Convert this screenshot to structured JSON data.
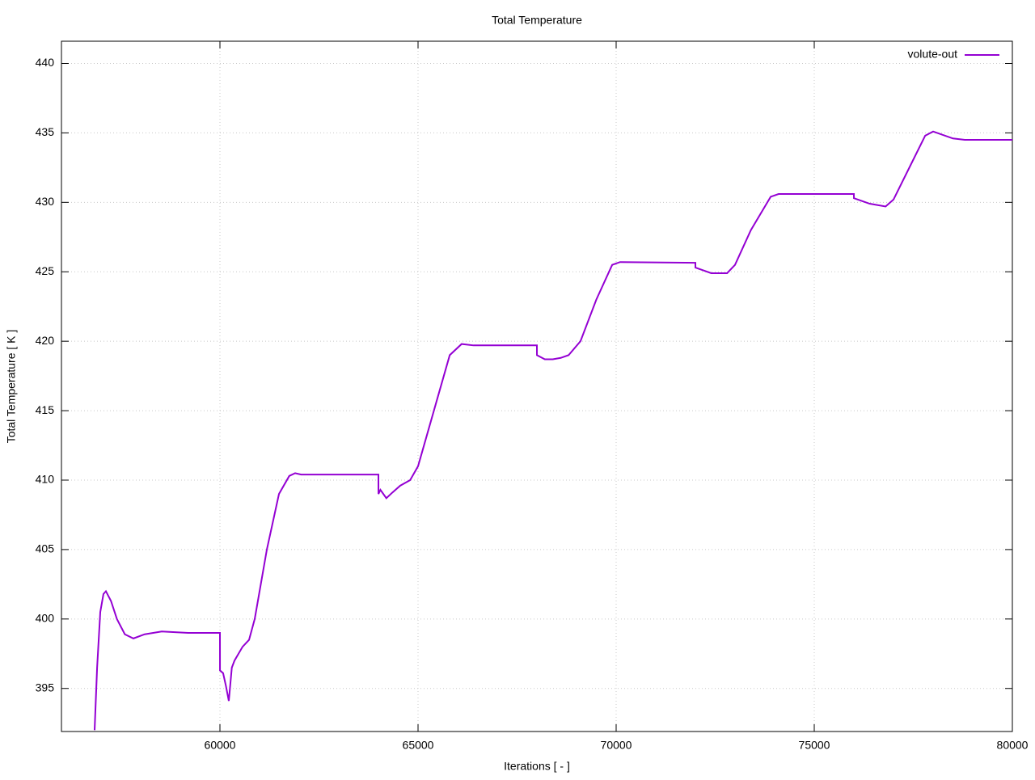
{
  "chart_data": {
    "type": "line",
    "title": "Total Temperature",
    "x_label": "Iterations [ - ]",
    "y_label": "Total Temperature [ K ]",
    "x": [
      56837,
      56900,
      56980,
      57060,
      57122,
      57250,
      57400,
      57600,
      57816,
      58100,
      58531,
      59200,
      60000,
      60001,
      60080,
      60150,
      60224,
      60300,
      60367,
      60571,
      60735,
      60878,
      61184,
      61490,
      61750,
      61898,
      62050,
      62300,
      64000,
      64001,
      64050,
      64200,
      64350,
      64550,
      64800,
      65000,
      65400,
      65800,
      66100,
      66400,
      68000,
      68001,
      68200,
      68400,
      68600,
      68800,
      69100,
      69500,
      69900,
      70100,
      72000,
      72001,
      72400,
      72800,
      73000,
      73400,
      73900,
      74100,
      76000,
      76001,
      76400,
      76800,
      77000,
      77400,
      77800,
      78000,
      78500,
      78800,
      80000
    ],
    "series": [
      {
        "name": "volute-out",
        "color": "#9400d3",
        "values": [
          392.0,
          396.5,
          400.5,
          401.8,
          402.0,
          401.3,
          400.0,
          398.9,
          398.6,
          398.9,
          399.1,
          399.0,
          399.0,
          396.3,
          396.1,
          395.2,
          394.1,
          396.5,
          397.0,
          398.0,
          398.5,
          400.0,
          405.0,
          409.0,
          410.3,
          410.5,
          410.4,
          410.4,
          410.4,
          409.0,
          409.3,
          408.7,
          409.1,
          409.6,
          410.0,
          411.0,
          415.0,
          419.0,
          419.8,
          419.7,
          419.7,
          419.0,
          418.7,
          418.7,
          418.8,
          419.0,
          420.0,
          423.0,
          425.5,
          425.7,
          425.65,
          425.3,
          424.9,
          424.9,
          425.5,
          428.0,
          430.4,
          430.6,
          430.6,
          430.3,
          429.9,
          429.7,
          430.2,
          432.5,
          434.8,
          435.1,
          434.6,
          434.5,
          434.5
        ]
      }
    ],
    "xlim": [
      56000,
      80000
    ],
    "ylim": [
      391.9,
      441.6
    ],
    "xticks": [
      60000,
      65000,
      70000,
      75000,
      80000
    ],
    "yticks": [
      395,
      400,
      405,
      410,
      415,
      420,
      425,
      430,
      435,
      440
    ],
    "grid": true,
    "legend": "top-right"
  }
}
